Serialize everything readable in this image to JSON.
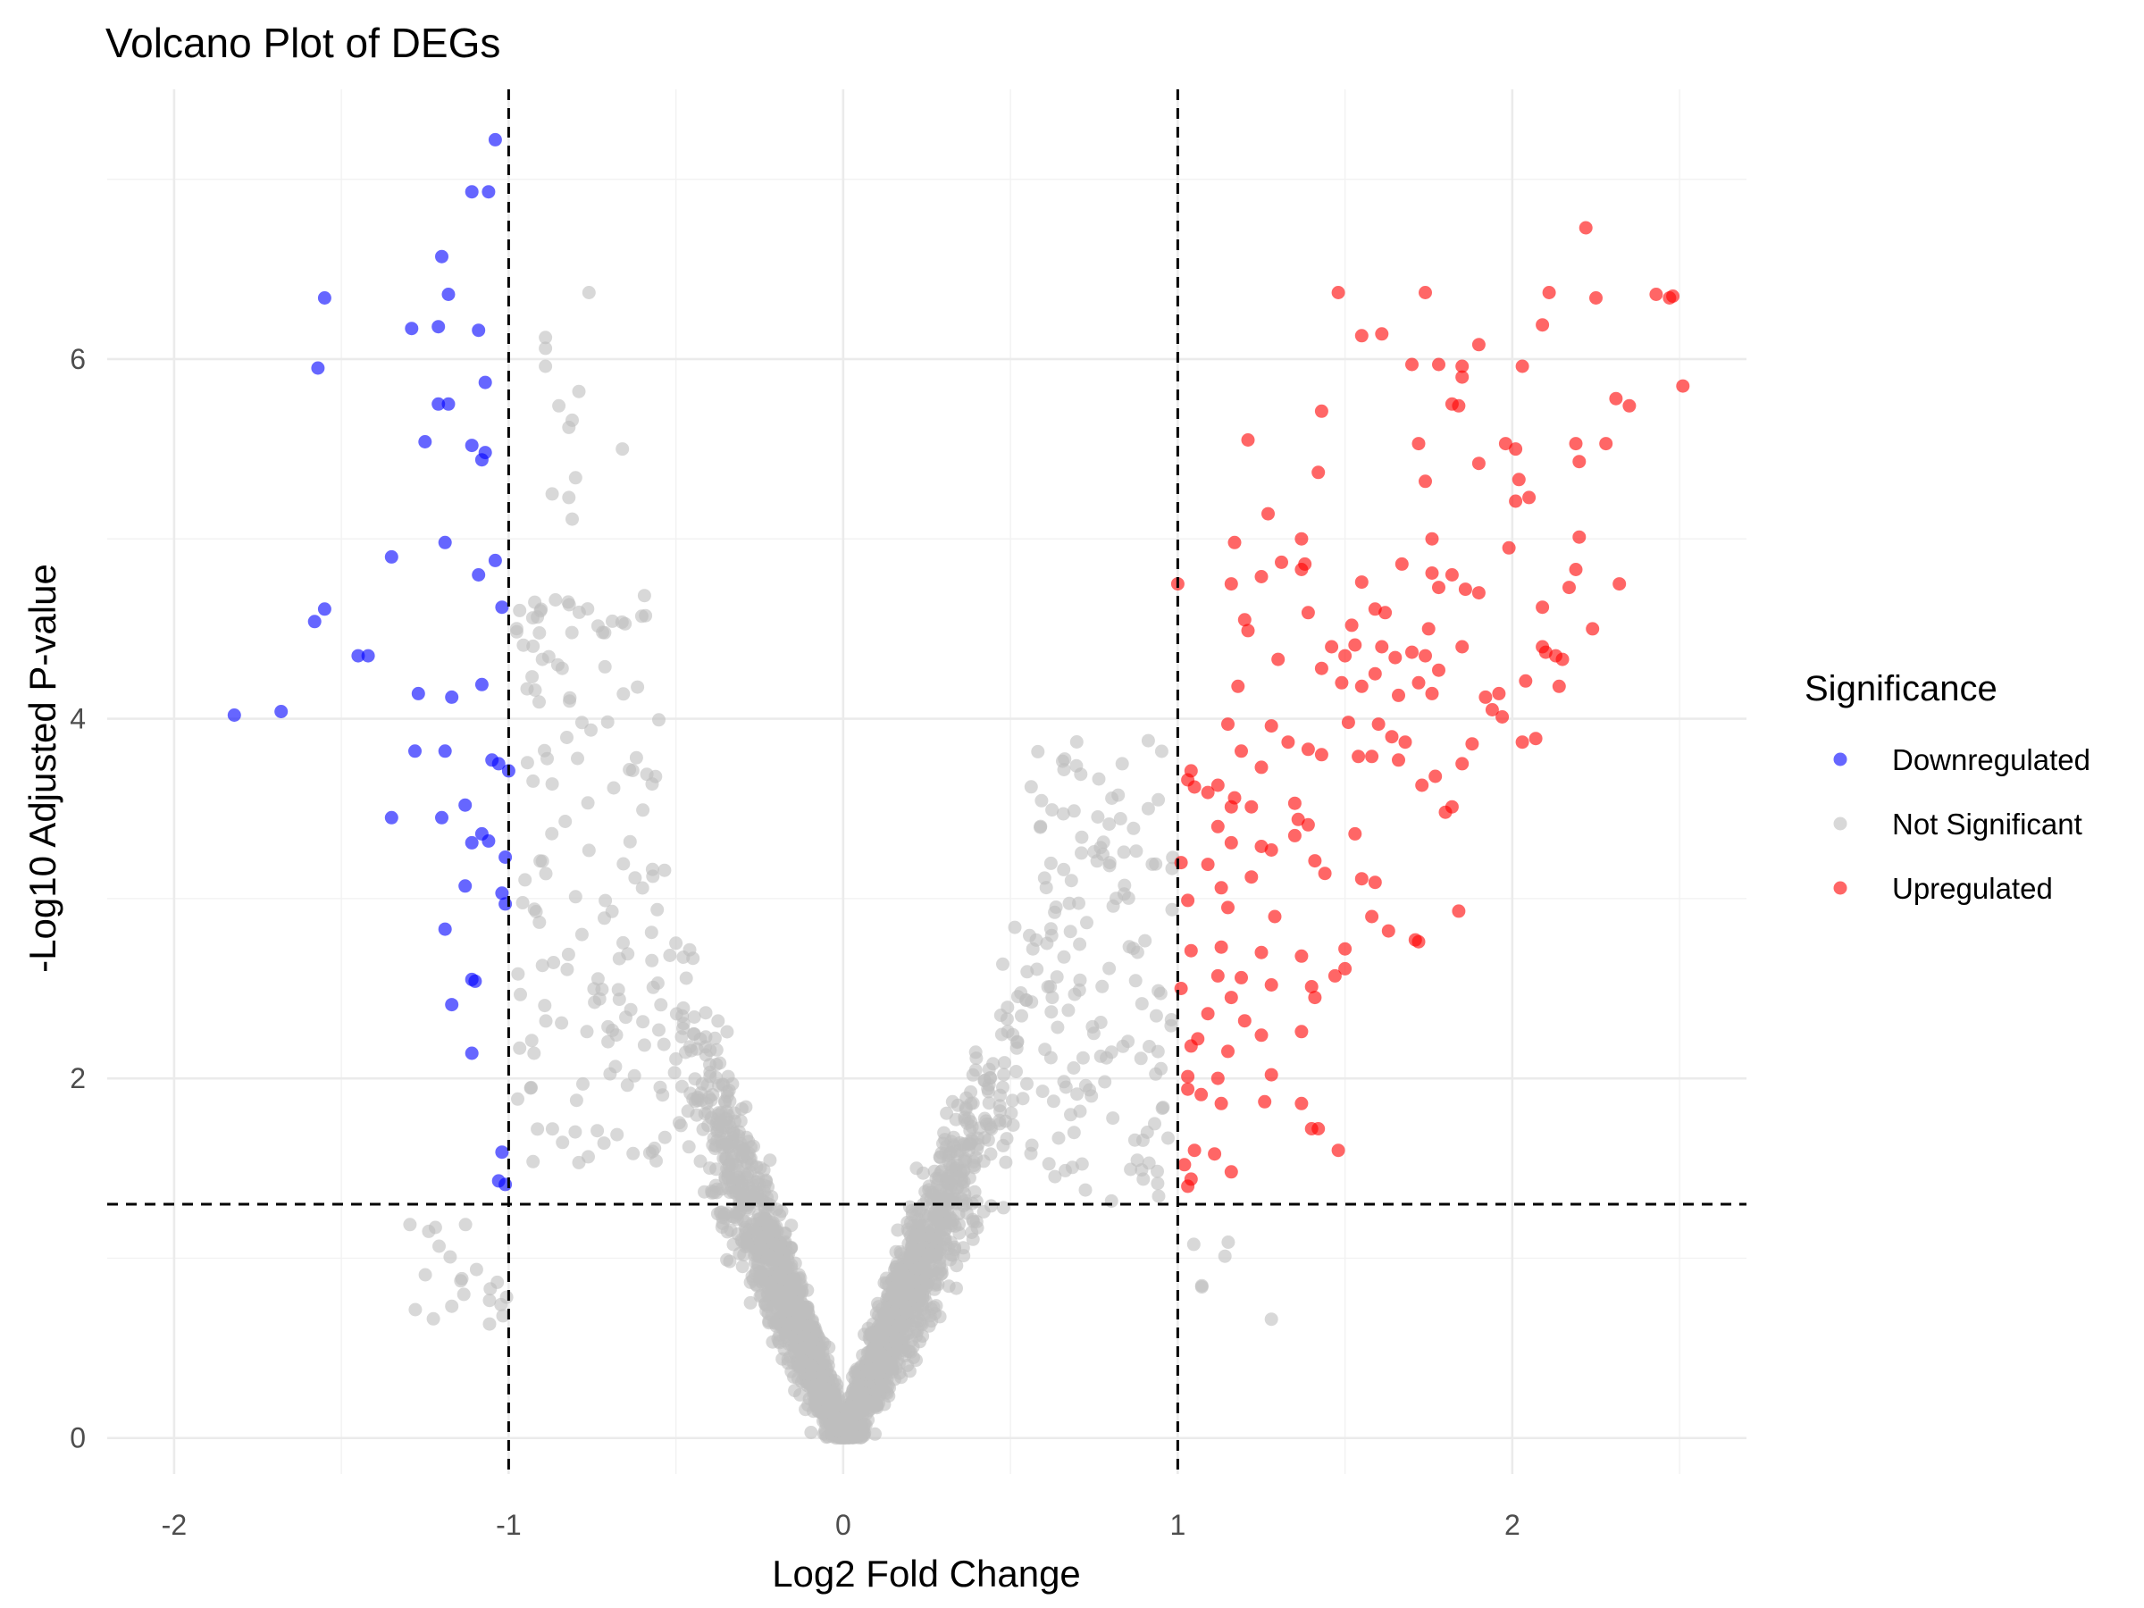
{
  "chart_data": {
    "type": "scatter",
    "title": "Volcano Plot of DEGs",
    "xlabel": "Log2 Fold Change",
    "ylabel": "-Log10 Adjusted P-value",
    "xlim": [
      -2.2,
      2.7
    ],
    "ylim": [
      -0.2,
      7.5
    ],
    "x_ticks": [
      -2,
      -1,
      0,
      1,
      2
    ],
    "y_ticks": [
      0,
      2,
      4,
      6
    ],
    "x_tick_labels": [
      "-2",
      "-1",
      "0",
      "1",
      "2"
    ],
    "y_tick_labels": [
      "0",
      "2",
      "4",
      "6"
    ],
    "grid": true,
    "thresholds": {
      "log2fc": [
        -1,
        1
      ],
      "neg_log10_padj": 1.3
    },
    "legend": {
      "title": "Significance",
      "position": "right"
    },
    "colors": {
      "Downregulated": "#0000ff",
      "Not Significant": "#bebebe",
      "Upregulated": "#ff0000"
    },
    "point_opacity": 0.6,
    "series": [
      {
        "name": "Downregulated",
        "points": [
          [
            -1.04,
            7.22
          ],
          [
            -1.11,
            6.93
          ],
          [
            -1.06,
            6.93
          ],
          [
            -1.2,
            6.57
          ],
          [
            -1.55,
            6.34
          ],
          [
            -1.18,
            6.36
          ],
          [
            -1.29,
            6.17
          ],
          [
            -1.21,
            6.18
          ],
          [
            -1.09,
            6.16
          ],
          [
            -1.57,
            5.95
          ],
          [
            -1.07,
            5.87
          ],
          [
            -1.21,
            5.75
          ],
          [
            -1.18,
            5.75
          ],
          [
            -1.25,
            5.54
          ],
          [
            -1.11,
            5.52
          ],
          [
            -1.07,
            5.48
          ],
          [
            -1.08,
            5.44
          ],
          [
            -1.19,
            4.98
          ],
          [
            -1.35,
            4.9
          ],
          [
            -1.04,
            4.88
          ],
          [
            -1.09,
            4.8
          ],
          [
            -1.55,
            4.61
          ],
          [
            -1.02,
            4.62
          ],
          [
            -1.58,
            4.54
          ],
          [
            -1.45,
            4.35
          ],
          [
            -1.42,
            4.35
          ],
          [
            -1.08,
            4.19
          ],
          [
            -1.27,
            4.14
          ],
          [
            -1.17,
            4.12
          ],
          [
            -1.82,
            4.02
          ],
          [
            -1.68,
            4.04
          ],
          [
            -1.05,
            3.77
          ],
          [
            -1.28,
            3.82
          ],
          [
            -1.19,
            3.82
          ],
          [
            -1.03,
            3.75
          ],
          [
            -1.0,
            3.71
          ],
          [
            -1.13,
            3.52
          ],
          [
            -1.35,
            3.45
          ],
          [
            -1.2,
            3.45
          ],
          [
            -1.08,
            3.36
          ],
          [
            -1.06,
            3.32
          ],
          [
            -1.11,
            3.31
          ],
          [
            -1.01,
            3.23
          ],
          [
            -1.13,
            3.07
          ],
          [
            -1.02,
            3.03
          ],
          [
            -1.01,
            2.97
          ],
          [
            -1.19,
            2.83
          ],
          [
            -1.11,
            2.55
          ],
          [
            -1.1,
            2.54
          ],
          [
            -1.17,
            2.41
          ],
          [
            -1.11,
            2.14
          ],
          [
            -1.02,
            1.59
          ],
          [
            -1.03,
            1.43
          ],
          [
            -1.01,
            1.41
          ]
        ]
      },
      {
        "name": "Not Significant",
        "points": []
      },
      {
        "name": "Upregulated",
        "points": [
          [
            2.22,
            6.73
          ],
          [
            1.48,
            6.37
          ],
          [
            1.74,
            6.37
          ],
          [
            2.11,
            6.37
          ],
          [
            2.25,
            6.34
          ],
          [
            2.43,
            6.36
          ],
          [
            2.47,
            6.34
          ],
          [
            2.48,
            6.35
          ],
          [
            2.09,
            6.19
          ],
          [
            1.55,
            6.13
          ],
          [
            1.61,
            6.14
          ],
          [
            1.9,
            6.08
          ],
          [
            1.7,
            5.97
          ],
          [
            1.78,
            5.97
          ],
          [
            1.85,
            5.96
          ],
          [
            2.03,
            5.96
          ],
          [
            1.85,
            5.9
          ],
          [
            2.51,
            5.85
          ],
          [
            2.31,
            5.78
          ],
          [
            2.35,
            5.74
          ],
          [
            1.82,
            5.75
          ],
          [
            1.84,
            5.74
          ],
          [
            1.43,
            5.71
          ],
          [
            1.21,
            5.55
          ],
          [
            1.72,
            5.53
          ],
          [
            1.98,
            5.53
          ],
          [
            2.01,
            5.5
          ],
          [
            2.19,
            5.53
          ],
          [
            2.28,
            5.53
          ],
          [
            1.9,
            5.42
          ],
          [
            2.2,
            5.43
          ],
          [
            2.02,
            5.33
          ],
          [
            1.42,
            5.37
          ],
          [
            1.74,
            5.32
          ],
          [
            2.01,
            5.21
          ],
          [
            2.05,
            5.23
          ],
          [
            1.27,
            5.14
          ],
          [
            2.2,
            5.01
          ],
          [
            1.76,
            5.0
          ],
          [
            1.37,
            5.0
          ],
          [
            1.99,
            4.95
          ],
          [
            1.17,
            4.98
          ],
          [
            1.31,
            4.87
          ],
          [
            1.38,
            4.86
          ],
          [
            1.67,
            4.86
          ],
          [
            1.37,
            4.83
          ],
          [
            1.25,
            4.79
          ],
          [
            1.76,
            4.81
          ],
          [
            1.82,
            4.8
          ],
          [
            1.55,
            4.76
          ],
          [
            1.0,
            4.75
          ],
          [
            1.16,
            4.75
          ],
          [
            2.19,
            4.83
          ],
          [
            1.78,
            4.73
          ],
          [
            2.17,
            4.73
          ],
          [
            2.32,
            4.75
          ],
          [
            1.86,
            4.72
          ],
          [
            1.9,
            4.7
          ],
          [
            1.59,
            4.61
          ],
          [
            1.62,
            4.59
          ],
          [
            1.39,
            4.59
          ],
          [
            2.09,
            4.62
          ],
          [
            1.2,
            4.55
          ],
          [
            1.52,
            4.52
          ],
          [
            1.75,
            4.5
          ],
          [
            1.21,
            4.49
          ],
          [
            2.24,
            4.5
          ],
          [
            1.46,
            4.4
          ],
          [
            1.53,
            4.41
          ],
          [
            1.61,
            4.4
          ],
          [
            1.7,
            4.37
          ],
          [
            1.74,
            4.35
          ],
          [
            1.85,
            4.4
          ],
          [
            2.09,
            4.4
          ],
          [
            2.1,
            4.37
          ],
          [
            1.3,
            4.33
          ],
          [
            1.5,
            4.35
          ],
          [
            1.65,
            4.34
          ],
          [
            2.13,
            4.35
          ],
          [
            2.15,
            4.33
          ],
          [
            1.43,
            4.28
          ],
          [
            1.59,
            4.25
          ],
          [
            1.78,
            4.27
          ],
          [
            1.49,
            4.2
          ],
          [
            1.72,
            4.2
          ],
          [
            1.55,
            4.18
          ],
          [
            2.04,
            4.21
          ],
          [
            2.14,
            4.18
          ],
          [
            1.18,
            4.18
          ],
          [
            1.66,
            4.13
          ],
          [
            1.76,
            4.14
          ],
          [
            1.92,
            4.12
          ],
          [
            1.96,
            4.14
          ],
          [
            1.94,
            4.05
          ],
          [
            1.97,
            4.01
          ],
          [
            1.15,
            3.97
          ],
          [
            1.28,
            3.96
          ],
          [
            1.51,
            3.98
          ],
          [
            1.6,
            3.97
          ],
          [
            1.64,
            3.9
          ],
          [
            1.68,
            3.87
          ],
          [
            1.33,
            3.87
          ],
          [
            2.03,
            3.87
          ],
          [
            2.07,
            3.89
          ],
          [
            1.88,
            3.86
          ],
          [
            1.43,
            3.8
          ],
          [
            1.66,
            3.77
          ],
          [
            1.39,
            3.83
          ],
          [
            1.19,
            3.82
          ],
          [
            1.54,
            3.79
          ],
          [
            1.58,
            3.79
          ],
          [
            1.85,
            3.75
          ],
          [
            1.25,
            3.73
          ],
          [
            1.04,
            3.71
          ],
          [
            1.03,
            3.66
          ],
          [
            1.77,
            3.68
          ],
          [
            1.05,
            3.62
          ],
          [
            1.12,
            3.63
          ],
          [
            1.73,
            3.63
          ],
          [
            1.09,
            3.59
          ],
          [
            1.17,
            3.56
          ],
          [
            1.16,
            3.51
          ],
          [
            1.35,
            3.53
          ],
          [
            1.22,
            3.51
          ],
          [
            1.36,
            3.44
          ],
          [
            1.39,
            3.41
          ],
          [
            1.12,
            3.4
          ],
          [
            1.35,
            3.35
          ],
          [
            1.53,
            3.36
          ],
          [
            1.8,
            3.48
          ],
          [
            1.82,
            3.51
          ],
          [
            1.16,
            3.31
          ],
          [
            1.25,
            3.29
          ],
          [
            1.28,
            3.27
          ],
          [
            1.41,
            3.21
          ],
          [
            1.01,
            3.2
          ],
          [
            1.09,
            3.19
          ],
          [
            1.13,
            3.06
          ],
          [
            1.22,
            3.12
          ],
          [
            1.59,
            3.09
          ],
          [
            1.44,
            3.14
          ],
          [
            1.55,
            3.11
          ],
          [
            1.03,
            2.99
          ],
          [
            1.15,
            2.95
          ],
          [
            1.29,
            2.9
          ],
          [
            1.58,
            2.9
          ],
          [
            1.63,
            2.82
          ],
          [
            1.72,
            2.76
          ],
          [
            1.84,
            2.93
          ],
          [
            1.71,
            2.77
          ],
          [
            1.04,
            2.71
          ],
          [
            1.13,
            2.73
          ],
          [
            1.25,
            2.7
          ],
          [
            1.37,
            2.68
          ],
          [
            1.5,
            2.72
          ],
          [
            1.12,
            2.57
          ],
          [
            1.19,
            2.56
          ],
          [
            1.4,
            2.51
          ],
          [
            1.47,
            2.57
          ],
          [
            1.5,
            2.61
          ],
          [
            1.01,
            2.5
          ],
          [
            1.16,
            2.45
          ],
          [
            1.28,
            2.52
          ],
          [
            1.41,
            2.45
          ],
          [
            1.09,
            2.36
          ],
          [
            1.2,
            2.32
          ],
          [
            1.25,
            2.24
          ],
          [
            1.37,
            2.26
          ],
          [
            1.04,
            2.18
          ],
          [
            1.06,
            2.22
          ],
          [
            1.15,
            2.15
          ],
          [
            1.03,
            2.01
          ],
          [
            1.12,
            2.0
          ],
          [
            1.03,
            1.94
          ],
          [
            1.07,
            1.91
          ],
          [
            1.28,
            2.02
          ],
          [
            1.13,
            1.86
          ],
          [
            1.26,
            1.87
          ],
          [
            1.37,
            1.86
          ],
          [
            1.4,
            1.72
          ],
          [
            1.42,
            1.72
          ],
          [
            1.48,
            1.6
          ],
          [
            1.05,
            1.6
          ],
          [
            1.11,
            1.58
          ],
          [
            1.02,
            1.52
          ],
          [
            1.04,
            1.44
          ],
          [
            1.16,
            1.48
          ],
          [
            1.03,
            1.4
          ]
        ]
      }
    ]
  }
}
